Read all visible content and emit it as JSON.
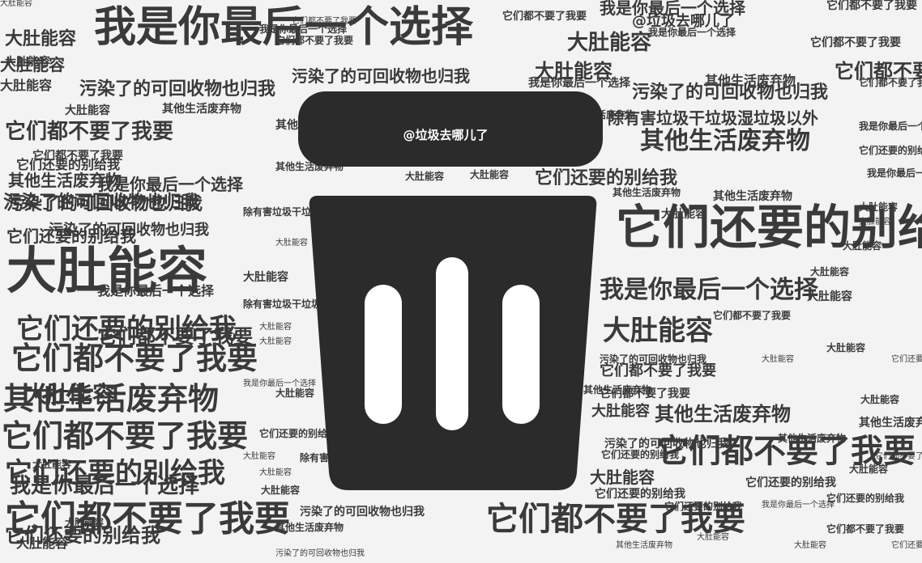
{
  "handle_label": "@垃圾去哪儿了",
  "words": [
    "我是你最后一个选择",
    "大肚能容",
    "污染了的可回收物也归我",
    "除有害垃圾干垃圾湿垃圾以外",
    "它们都不要了我要",
    "其他生活废弃物",
    "它们还要的别给我",
    "@垃圾去哪儿了",
    "我是你最后一个选择",
    "它们都不要了我要",
    "大肚能容",
    "它们还要的别给我",
    "我是你最后一个选择",
    "大肚能容",
    "它们都不要了我要",
    "大肚能容",
    "大肚能容",
    "大肚能容",
    "大肚能容",
    "大肚能容",
    "污染了的可回收物也归我",
    "它们都不要了我要",
    "它们都不要了我要",
    "我是你最后一个选择",
    "我是你最后一个选择",
    "我是你最后一个选择",
    "其他生活废弃物",
    "它们都不要了我要",
    "大肚能容",
    "其他生活废弃物",
    "其他生活废弃物",
    "污染了的可回收物也归我",
    "它们都不要了我要",
    "大肚能容",
    "它们还要的别给我",
    "它们还要的别给我",
    "污染了的可回收物也归我",
    "大肚能容",
    "它们还要的别给我",
    "它们都不要了我要",
    "它们都不要了我要",
    "大肚能容",
    "其他生活废弃物",
    "大肚能容",
    "污染了的可回收物也归我",
    "其他生活废弃物",
    "大肚能容",
    "它们还要的别给我",
    "大肚能容",
    "我是你最后一个选择",
    "它们还要的别给我",
    "污染了的可回收物也归我",
    "除有害垃圾干垃圾湿垃圾以外",
    "它们还要的别给我",
    "大肚能容",
    "大肚能容",
    "我是你最后一个选择",
    "它们都不要了我要",
    "它们都不要了我要",
    "除有害垃圾干垃圾湿垃圾以外",
    "它们都不要了我要",
    "其他生活废弃物",
    "大肚能容",
    "其他生活废弃物",
    "大肚能容",
    "大肚能容",
    "大肚能容",
    "它们都不要了我要",
    "它们还要的别给我",
    "其他生活废弃物",
    "污染了的可回收物也归我",
    "我是你最后一个选择",
    "大肚能容",
    "它们还要的别给我",
    "其他生活废弃物",
    "污染了的可回收物也归我",
    "它们都不要了我要",
    "其他生活废弃物",
    "大肚能容",
    "大肚能容",
    "它们都不要了我要",
    "除有害垃圾干垃圾湿垃圾以外",
    "污染了的可回收物也归我",
    "除有害垃圾干垃圾湿垃圾以外",
    "它们还要的别给我",
    "它们都不要了我要",
    "大肚能容",
    "大肚能容",
    "大肚能容",
    "大肚能容",
    "其他生活废弃物",
    "大肚能容",
    "其他生活废弃物",
    "其他生活废弃物",
    "它们都不要了我要",
    "它们还要的别给我",
    "我是你最后一个选择",
    "大肚能容",
    "大肚能容",
    "它们都不要了我要",
    "我是你最后一个选择",
    "它们还要的别给我",
    "它们还要的别给我",
    "它们都不要了我要",
    "大肚能容",
    "大肚能容",
    "污染了的可回收物也归我",
    "其他生活废弃物",
    "大肚能容",
    "它们还要的别给我",
    "我是你最后一个选择",
    "它们都不要了我要",
    "大肚能容",
    "大肚能容",
    "其他生活废弃物",
    "它们还要的别给我",
    "我是你最后一个选择",
    "大肚能容",
    "大肚能容",
    "大肚能容"
  ],
  "colors": {
    "background": "#f3f3f3",
    "text": "#3a3a3a",
    "bin": "#2b2b2b",
    "slot": "#ffffff"
  }
}
